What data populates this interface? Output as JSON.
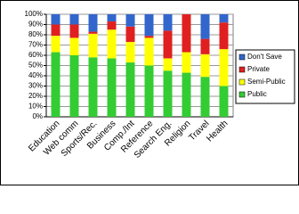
{
  "chart_data": {
    "type": "stacked_bar",
    "categories": [
      "Education",
      "Web comm",
      "Sports/Rec.",
      "Business",
      "Comp./Int",
      "Reference",
      "Search Eng.",
      "Religion",
      "Travel",
      "Health"
    ],
    "series": [
      {
        "name": "Public",
        "color": "#33cc33",
        "values": [
          63,
          60,
          58,
          57,
          53,
          50,
          45,
          43,
          39,
          30
        ]
      },
      {
        "name": "Semi-Public",
        "color": "#ffff00",
        "values": [
          16,
          17,
          23,
          28,
          20,
          27,
          12,
          20,
          22,
          36
        ]
      },
      {
        "name": "Private",
        "color": "#e02020",
        "values": [
          11,
          13,
          2,
          8,
          15,
          2,
          27,
          37,
          15,
          26
        ]
      },
      {
        "name": "Don't Save",
        "color": "#3366cc",
        "values": [
          10,
          10,
          17,
          7,
          12,
          21,
          16,
          0,
          24,
          8
        ]
      }
    ],
    "ylim": [
      0,
      100
    ],
    "yticks": [
      {
        "value": 0,
        "label": "0%"
      },
      {
        "value": 10,
        "label": "10%"
      },
      {
        "value": 20,
        "label": "20%"
      },
      {
        "value": 30,
        "label": "30%"
      },
      {
        "value": 40,
        "label": "40%"
      },
      {
        "value": 50,
        "label": "50%"
      },
      {
        "value": 60,
        "label": "60%"
      },
      {
        "value": 70,
        "label": "70%"
      },
      {
        "value": 80,
        "label": "80%"
      },
      {
        "value": 90,
        "label": "90%"
      },
      {
        "value": 100,
        "label": "100%"
      }
    ],
    "grid": true,
    "legend": "right"
  }
}
